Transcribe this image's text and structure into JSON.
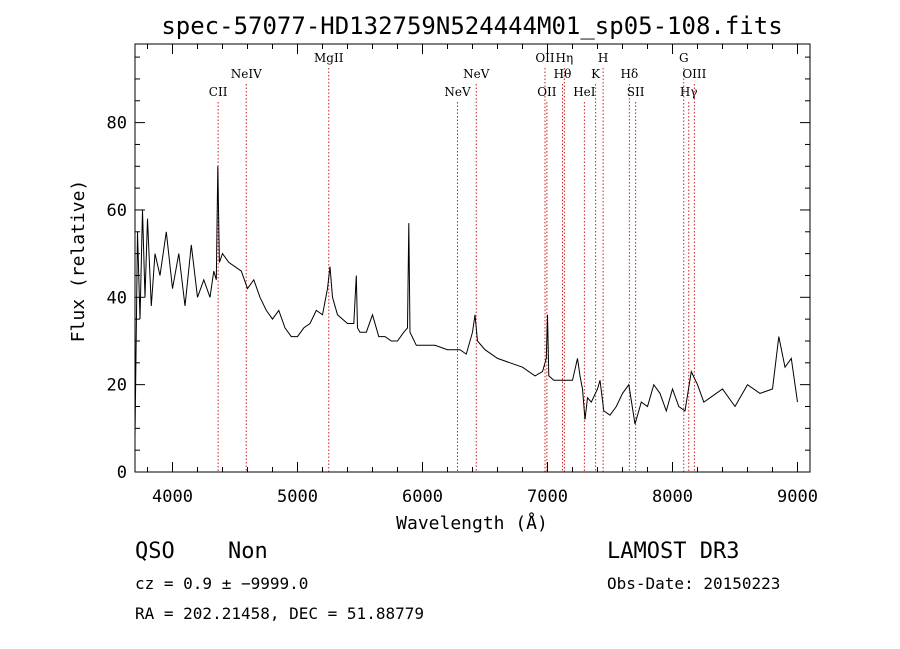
{
  "chart_data": {
    "type": "line",
    "title": "spec-57077-HD132759N524444M01_sp05-108.fits",
    "xlabel": "Wavelength (Å)",
    "ylabel": "Flux (relative)",
    "xlim": [
      3700,
      9100
    ],
    "ylim": [
      0,
      98
    ],
    "xticks": [
      4000,
      5000,
      6000,
      7000,
      8000,
      9000
    ],
    "yticks": [
      0,
      20,
      40,
      60,
      80
    ],
    "grid": false,
    "series": [
      {
        "name": "spectrum",
        "x": [
          3700,
          3720,
          3740,
          3760,
          3780,
          3800,
          3830,
          3860,
          3900,
          3950,
          4000,
          4050,
          4100,
          4150,
          4200,
          4250,
          4300,
          4330,
          4350,
          4362,
          4375,
          4400,
          4450,
          4500,
          4550,
          4600,
          4650,
          4700,
          4750,
          4800,
          4850,
          4900,
          4950,
          5000,
          5050,
          5100,
          5150,
          5200,
          5240,
          5260,
          5280,
          5320,
          5400,
          5450,
          5470,
          5480,
          5500,
          5550,
          5600,
          5650,
          5700,
          5750,
          5800,
          5850,
          5880,
          5890,
          5900,
          5950,
          6000,
          6100,
          6200,
          6300,
          6350,
          6400,
          6420,
          6440,
          6500,
          6600,
          6700,
          6800,
          6900,
          6960,
          6990,
          7000,
          7010,
          7050,
          7100,
          7150,
          7200,
          7240,
          7260,
          7280,
          7300,
          7320,
          7350,
          7400,
          7420,
          7450,
          7500,
          7550,
          7600,
          7650,
          7700,
          7750,
          7800,
          7850,
          7900,
          7950,
          8000,
          8050,
          8100,
          8150,
          8200,
          8250,
          8300,
          8400,
          8500,
          8600,
          8700,
          8800,
          8850,
          8900,
          8950,
          9000
        ],
        "y": [
          8,
          55,
          35,
          60,
          40,
          58,
          38,
          50,
          45,
          55,
          42,
          50,
          38,
          52,
          40,
          44,
          40,
          46,
          44,
          70,
          48,
          50,
          48,
          47,
          46,
          42,
          44,
          40,
          37,
          35,
          37,
          33,
          31,
          31,
          33,
          34,
          37,
          36,
          42,
          47,
          40,
          36,
          34,
          34,
          45,
          33,
          32,
          32,
          36,
          31,
          31,
          30,
          30,
          32,
          33,
          57,
          32,
          29,
          29,
          29,
          28,
          28,
          27,
          32,
          36,
          30,
          28,
          26,
          25,
          24,
          22,
          23,
          26,
          36,
          22,
          21,
          21,
          21,
          21,
          26,
          22,
          19,
          12,
          17,
          16,
          19,
          21,
          14,
          13,
          15,
          18,
          20,
          11,
          16,
          15,
          20,
          18,
          14,
          19,
          15,
          14,
          23,
          20,
          16,
          17,
          19,
          15,
          20,
          18,
          19,
          31,
          24,
          26,
          16
        ]
      }
    ],
    "lines": [
      {
        "name": "CII",
        "x": 4365,
        "row": 3
      },
      {
        "name": "NeIV",
        "x": 4590,
        "row": 2
      },
      {
        "name": "MgII",
        "x": 5250,
        "row": 1
      },
      {
        "name": "NeV",
        "x": 6280,
        "row": 3
      },
      {
        "name": "NeV",
        "x": 6430,
        "row": 2
      },
      {
        "name": "OII",
        "x": 6980,
        "row": 1
      },
      {
        "name": "OII",
        "x": 6995,
        "row": 3
      },
      {
        "name": "Hη",
        "x": 7135,
        "row": 1
      },
      {
        "name": "Hθ",
        "x": 7120,
        "row": 2
      },
      {
        "name": "HeI",
        "x": 7295,
        "row": 3
      },
      {
        "name": "K",
        "x": 7385,
        "row": 2
      },
      {
        "name": "H",
        "x": 7445,
        "row": 1
      },
      {
        "name": "Hδ",
        "x": 7655,
        "row": 2
      },
      {
        "name": "SII",
        "x": 7705,
        "row": 3
      },
      {
        "name": "G",
        "x": 8090,
        "row": 1
      },
      {
        "name": "Hγ",
        "x": 8130,
        "row": 3
      },
      {
        "name": "OIII",
        "x": 8175,
        "row": 2
      }
    ],
    "colors": {
      "line": "#000000",
      "marker": "#cc2222"
    }
  },
  "info": {
    "class": "QSO",
    "subclass": "Non",
    "survey": "LAMOST DR3",
    "cz": "cz = 0.9 ± −9999.0",
    "obs_date": "Obs-Date: 20150223",
    "coords": "RA = 202.21458, DEC =  51.88779"
  }
}
